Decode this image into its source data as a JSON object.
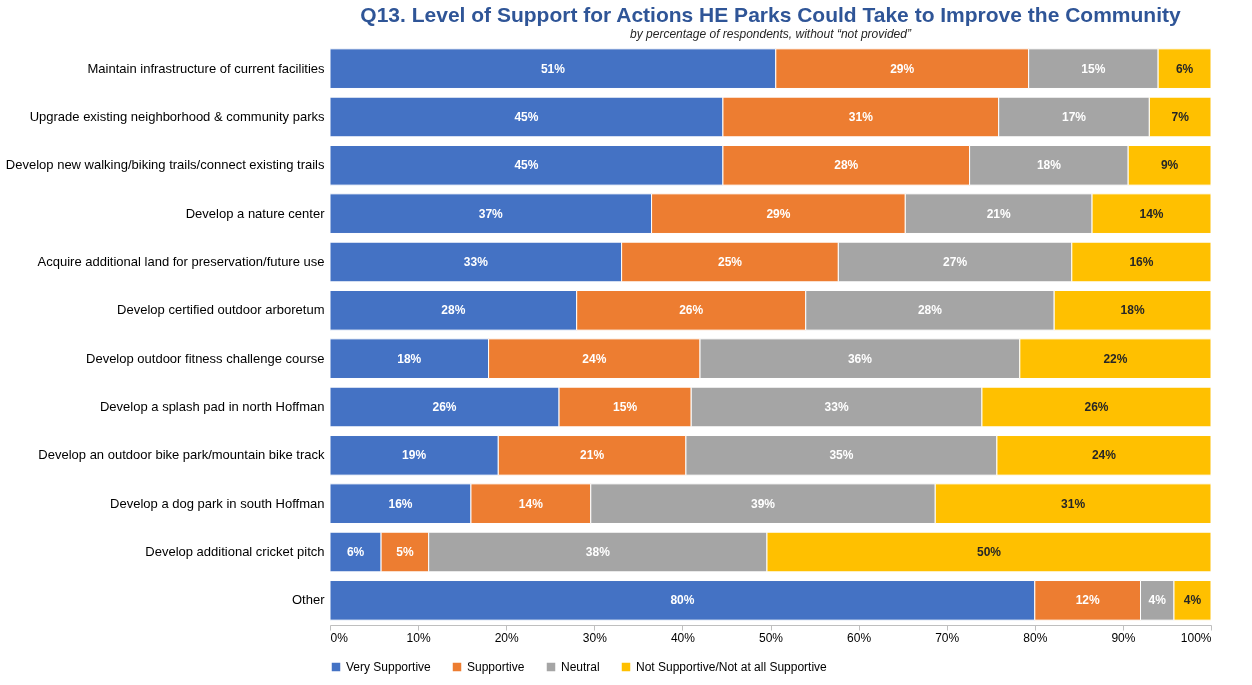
{
  "chart_data": {
    "type": "bar",
    "orientation": "horizontal",
    "stacked": true,
    "title": "Q13. Level of Support for Actions HE Parks Could Take to Improve the Community",
    "subtitle": "by percentage of respondents, without “not provided”",
    "categories": [
      "Maintain infrastructure of current facilities",
      "Upgrade existing neighborhood & community parks",
      "Develop new walking/biking trails/connect existing trails",
      "Develop a nature center",
      "Acquire additional land for preservation/future use",
      "Develop certified outdoor arboretum",
      "Develop outdoor fitness challenge course",
      "Develop a splash pad in north Hoffman",
      "Develop an outdoor bike park/mountain bike track",
      "Develop a dog park in south Hoffman",
      "Develop additional cricket pitch",
      "Other"
    ],
    "series": [
      {
        "name": "Very Supportive",
        "color": "#4472c4",
        "values": [
          50.6,
          44.6,
          44.6,
          36.5,
          33.1,
          28,
          18,
          26,
          19.1,
          16,
          5.8,
          80
        ],
        "value_labels": [
          "51%",
          "45%",
          "45%",
          "37%",
          "33%",
          "28%",
          "18%",
          "26%",
          "19%",
          "16%",
          "6%",
          "80%"
        ]
      },
      {
        "name": "Supportive",
        "color": "#ed7d31",
        "values": [
          28.7,
          31.3,
          28,
          28.8,
          24.6,
          26,
          24,
          15,
          21.3,
          13.6,
          5.4,
          12
        ],
        "value_labels": [
          "29%",
          "31%",
          "28%",
          "29%",
          "25%",
          "26%",
          "24%",
          "15%",
          "21%",
          "14%",
          "5%",
          "12%"
        ]
      },
      {
        "name": "Neutral",
        "color": "#a5a5a5",
        "values": [
          14.7,
          17.1,
          18,
          21.2,
          26.5,
          28.2,
          36.3,
          33,
          35.3,
          39.1,
          38.4,
          3.8
        ],
        "value_labels": [
          "15%",
          "17%",
          "18%",
          "21%",
          "27%",
          "28%",
          "36%",
          "33%",
          "35%",
          "39%",
          "38%",
          "4%"
        ]
      },
      {
        "name": "Not Supportive/Not at all Supportive",
        "color": "#ffc000",
        "values": [
          6,
          7,
          9.4,
          13.5,
          15.8,
          17.8,
          21.7,
          26,
          24.3,
          31.3,
          50.4,
          4.2
        ],
        "value_labels": [
          "6%",
          "7%",
          "9%",
          "14%",
          "16%",
          "18%",
          "22%",
          "26%",
          "24%",
          "31%",
          "50%",
          "4%"
        ]
      }
    ],
    "xlim": [
      0,
      100
    ],
    "xticks": [
      {
        "value": 0,
        "label": "0%"
      },
      {
        "value": 10,
        "label": "10%"
      },
      {
        "value": 20,
        "label": "20%"
      },
      {
        "value": 30,
        "label": "30%"
      },
      {
        "value": 40,
        "label": "40%"
      },
      {
        "value": 50,
        "label": "50%"
      },
      {
        "value": 60,
        "label": "60%"
      },
      {
        "value": 70,
        "label": "70%"
      },
      {
        "value": 80,
        "label": "80%"
      },
      {
        "value": 90,
        "label": "90%"
      },
      {
        "value": 100,
        "label": "100%"
      }
    ],
    "legend": "bottom",
    "grid": false
  }
}
